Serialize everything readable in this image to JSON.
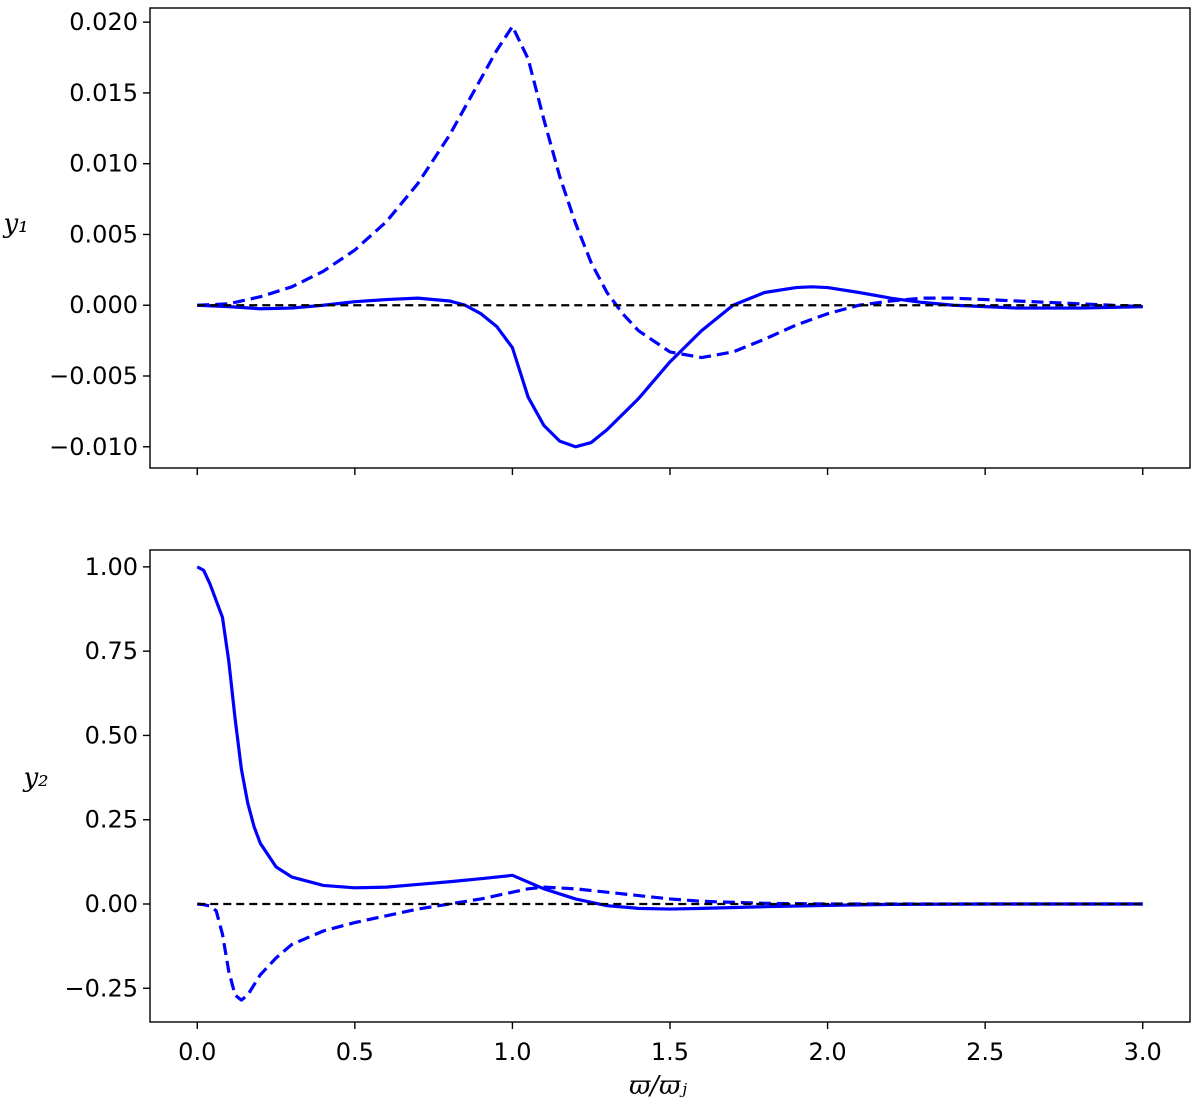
{
  "chart_data": [
    {
      "type": "line",
      "ylabel": "y₁",
      "xlim": [
        -0.15,
        3.15
      ],
      "ylim": [
        -0.0115,
        0.021
      ],
      "x_ticks": [
        0.0,
        0.5,
        1.0,
        1.5,
        2.0,
        2.5,
        3.0
      ],
      "x_tick_labels_shown": false,
      "y_ticks": [
        -0.01,
        -0.005,
        0.0,
        0.005,
        0.01,
        0.015,
        0.02
      ],
      "y_tick_labels": [
        "−0.010",
        "−0.005",
        "0.000",
        "0.005",
        "0.010",
        "0.015",
        "0.020"
      ],
      "grid": false,
      "series": [
        {
          "style": "solid",
          "color": "#0000ff",
          "x": [
            0,
            0.1,
            0.2,
            0.3,
            0.4,
            0.5,
            0.6,
            0.7,
            0.8,
            0.85,
            0.9,
            0.95,
            1.0,
            1.05,
            1.1,
            1.15,
            1.2,
            1.25,
            1.3,
            1.4,
            1.5,
            1.6,
            1.7,
            1.8,
            1.9,
            1.95,
            2.0,
            2.1,
            2.2,
            2.3,
            2.4,
            2.5,
            2.6,
            2.7,
            2.8,
            2.9,
            3.0
          ],
          "y": [
            0.0,
            -0.0001,
            -0.00025,
            -0.0002,
            0.0,
            0.00025,
            0.0004,
            0.0005,
            0.0003,
            0.0,
            -0.0006,
            -0.0015,
            -0.003,
            -0.0065,
            -0.0085,
            -0.0096,
            -0.01,
            -0.0097,
            -0.0088,
            -0.0066,
            -0.004,
            -0.0018,
            0.0,
            0.0009,
            0.00125,
            0.0013,
            0.00125,
            0.0009,
            0.0005,
            0.0002,
            0.0,
            -0.0001,
            -0.0002,
            -0.0002,
            -0.0002,
            -0.00015,
            -0.0001
          ]
        },
        {
          "style": "dashed",
          "color": "#0000ff",
          "x": [
            0,
            0.1,
            0.2,
            0.3,
            0.4,
            0.5,
            0.6,
            0.7,
            0.8,
            0.9,
            0.95,
            1.0,
            1.05,
            1.1,
            1.15,
            1.2,
            1.25,
            1.3,
            1.35,
            1.4,
            1.5,
            1.6,
            1.7,
            1.8,
            1.9,
            2.0,
            2.1,
            2.2,
            2.3,
            2.4,
            2.5,
            2.6,
            2.7,
            2.8,
            2.9,
            3.0
          ],
          "y": [
            0.0,
            0.0001,
            0.0006,
            0.0013,
            0.0024,
            0.0039,
            0.0059,
            0.0086,
            0.012,
            0.016,
            0.018,
            0.0197,
            0.0174,
            0.0131,
            0.0091,
            0.0058,
            0.003,
            0.0009,
            -0.0006,
            -0.0018,
            -0.0033,
            -0.0037,
            -0.0033,
            -0.0024,
            -0.0014,
            -0.0006,
            0.0,
            0.0003,
            0.0005,
            0.0005,
            0.0004,
            0.0003,
            0.0002,
            0.0001,
            0.0,
            -0.0001
          ]
        },
        {
          "style": "dashed",
          "color": "#000000",
          "x": [
            0,
            3.0
          ],
          "y": [
            0,
            0
          ]
        }
      ]
    },
    {
      "type": "line",
      "ylabel": "y₂",
      "xlabel": "ϖ/ϖⱼ",
      "xlim": [
        -0.15,
        3.15
      ],
      "ylim": [
        -0.35,
        1.05
      ],
      "x_ticks": [
        0.0,
        0.5,
        1.0,
        1.5,
        2.0,
        2.5,
        3.0
      ],
      "x_tick_labels": [
        "0.0",
        "0.5",
        "1.0",
        "1.5",
        "2.0",
        "2.5",
        "3.0"
      ],
      "y_ticks": [
        -0.25,
        0.0,
        0.25,
        0.5,
        0.75,
        1.0
      ],
      "y_tick_labels": [
        "−0.25",
        "0.00",
        "0.25",
        "0.50",
        "0.75",
        "1.00"
      ],
      "grid": false,
      "series": [
        {
          "style": "solid",
          "color": "#0000ff",
          "x": [
            0,
            0.02,
            0.04,
            0.06,
            0.08,
            0.1,
            0.12,
            0.14,
            0.16,
            0.18,
            0.2,
            0.25,
            0.3,
            0.4,
            0.5,
            0.6,
            0.7,
            0.8,
            0.9,
            1.0,
            1.05,
            1.1,
            1.2,
            1.3,
            1.4,
            1.5,
            1.6,
            1.8,
            2.0,
            2.2,
            2.5,
            2.8,
            3.0
          ],
          "y": [
            1.0,
            0.99,
            0.95,
            0.9,
            0.85,
            0.72,
            0.55,
            0.4,
            0.3,
            0.23,
            0.18,
            0.11,
            0.08,
            0.055,
            0.048,
            0.05,
            0.058,
            0.066,
            0.075,
            0.085,
            0.065,
            0.045,
            0.015,
            -0.005,
            -0.013,
            -0.015,
            -0.013,
            -0.008,
            -0.004,
            -0.001,
            0.0,
            0.0,
            0.0
          ]
        },
        {
          "style": "dashed",
          "color": "#0000ff",
          "x": [
            0,
            0.02,
            0.04,
            0.06,
            0.08,
            0.1,
            0.12,
            0.14,
            0.16,
            0.18,
            0.2,
            0.25,
            0.3,
            0.4,
            0.5,
            0.6,
            0.7,
            0.8,
            0.9,
            1.0,
            1.05,
            1.1,
            1.2,
            1.3,
            1.4,
            1.5,
            1.6,
            1.8,
            2.0,
            2.5,
            3.0
          ],
          "y": [
            0.0,
            -0.002,
            -0.006,
            -0.02,
            -0.09,
            -0.2,
            -0.27,
            -0.285,
            -0.27,
            -0.24,
            -0.21,
            -0.16,
            -0.12,
            -0.08,
            -0.055,
            -0.035,
            -0.015,
            0.0,
            0.015,
            0.035,
            0.045,
            0.05,
            0.045,
            0.035,
            0.025,
            0.015,
            0.008,
            0.002,
            0.0,
            0.0,
            0.0
          ]
        },
        {
          "style": "dashed",
          "color": "#000000",
          "x": [
            0,
            3.0
          ],
          "y": [
            0,
            0
          ]
        }
      ]
    }
  ]
}
